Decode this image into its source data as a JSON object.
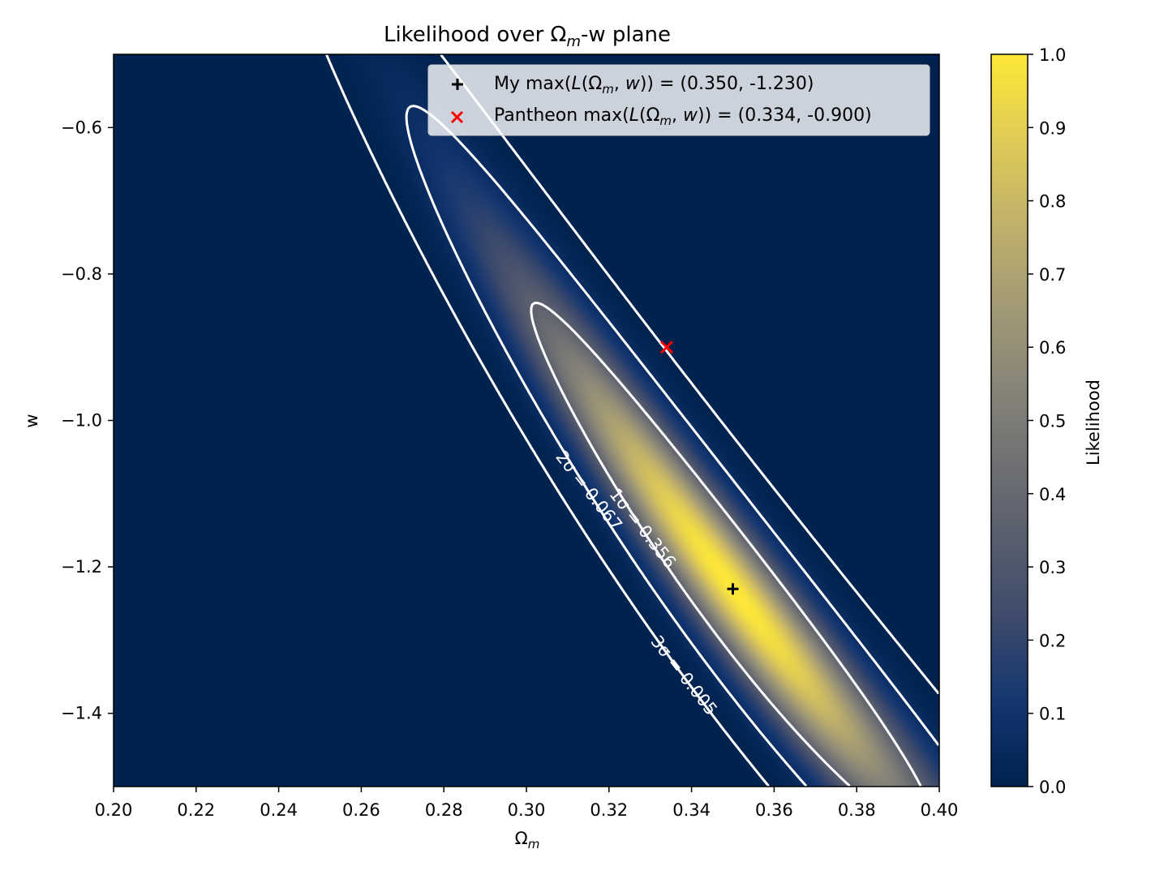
{
  "chart_data": {
    "type": "heatmap",
    "title": "Likelihood over Ωm-w plane",
    "title_parts": {
      "pre": "Likelihood over Ω",
      "sub": "m",
      "post": "-w plane"
    },
    "xlabel": {
      "main": "Ω",
      "sub": "m"
    },
    "ylabel": "w",
    "xlim": [
      0.2,
      0.4
    ],
    "ylim": [
      -1.5,
      -0.5
    ],
    "xticks": [
      0.2,
      0.22,
      0.24,
      0.26,
      0.28,
      0.3,
      0.32,
      0.34,
      0.36,
      0.38,
      0.4
    ],
    "xtick_labels": [
      "0.20",
      "0.22",
      "0.24",
      "0.26",
      "0.28",
      "0.30",
      "0.32",
      "0.34",
      "0.36",
      "0.38",
      "0.40"
    ],
    "yticks": [
      -0.6,
      -0.8,
      -1.0,
      -1.2,
      -1.4
    ],
    "ytick_labels": [
      "−0.6",
      "−0.8",
      "−1.0",
      "−1.2",
      "−1.4"
    ],
    "colorbar": {
      "label": "Likelihood",
      "range": [
        0,
        1
      ],
      "ticks": [
        0.0,
        0.1,
        0.2,
        0.3,
        0.4,
        0.5,
        0.6,
        0.7,
        0.8,
        0.9,
        1.0
      ],
      "tick_labels": [
        "0.0",
        "0.1",
        "0.2",
        "0.3",
        "0.4",
        "0.5",
        "0.6",
        "0.7",
        "0.8",
        "0.9",
        "1.0"
      ],
      "colormap": "cividis",
      "colors": [
        "#00224e",
        "#123570",
        "#3b496c",
        "#575d6d",
        "#707173",
        "#8a8678",
        "#a59c74",
        "#c3b369",
        "#e1cc55",
        "#fee838"
      ]
    },
    "likelihood_model": {
      "peak": [
        0.35,
        -1.23
      ],
      "axis_slope_w_per_omega": -7.2,
      "sigma_major_omega": 0.034,
      "sigma_minor_w": 0.064,
      "curvature": 12
    },
    "contours": [
      {
        "label": "1σ",
        "level": 0.356,
        "text": "1σ =  0.356"
      },
      {
        "label": "2σ",
        "level": 0.067,
        "text": "2σ =  0.067"
      },
      {
        "label": "3σ",
        "level": 0.005,
        "text": "3σ =  0.005"
      }
    ],
    "points": [
      {
        "name": "My",
        "marker": "plus",
        "color": "#000000",
        "omega_m": 0.35,
        "w": -1.23
      },
      {
        "name": "Pantheon",
        "marker": "x",
        "color": "#ff0000",
        "omega_m": 0.334,
        "w": -0.9
      }
    ],
    "legend": {
      "location": "upper right",
      "entries": [
        {
          "marker": "plus",
          "color": "#000000",
          "prefix": "My max(",
          "value": ") = (0.350, -1.230)"
        },
        {
          "marker": "x",
          "color": "#ff0000",
          "prefix": "Pantheon max(",
          "value": ") = (0.334, -0.900)"
        }
      ]
    },
    "contour_color": "#ffffff"
  }
}
